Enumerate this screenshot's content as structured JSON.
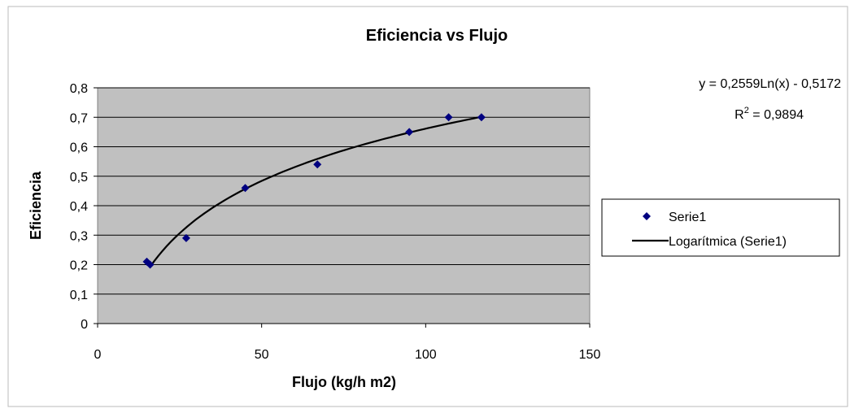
{
  "chart_data": {
    "type": "scatter",
    "title": "Eficiencia vs Flujo",
    "xlabel": "Flujo (kg/h m2)",
    "ylabel": "Eficiencia",
    "xlim": [
      0,
      150
    ],
    "ylim": [
      0,
      0.8
    ],
    "xticks": [
      0,
      50,
      100,
      150
    ],
    "xtick_labels": [
      "0",
      "50",
      "100",
      "150"
    ],
    "yticks": [
      0,
      0.1,
      0.2,
      0.3,
      0.4,
      0.5,
      0.6,
      0.7,
      0.8
    ],
    "ytick_labels": [
      "0",
      "0,1",
      "0,2",
      "0,3",
      "0,4",
      "0,5",
      "0,6",
      "0,7",
      "0,8"
    ],
    "grid": "horizontal",
    "plot_background": "#c0c0c0",
    "series": [
      {
        "name": "Serie1",
        "kind": "scatter",
        "color": "#000080",
        "marker": "diamond",
        "x": [
          15,
          16,
          27,
          45,
          67,
          95,
          107,
          117
        ],
        "y": [
          0.21,
          0.2,
          0.29,
          0.46,
          0.54,
          0.65,
          0.7,
          0.7
        ]
      }
    ],
    "trendline": {
      "name": "Logarítmica (Serie1)",
      "kind": "logarithmic",
      "a": 0.2559,
      "b": -0.5172,
      "x_range": [
        16,
        117
      ],
      "color": "#000000"
    },
    "annotations": {
      "equation": "y = 0,2559Ln(x) - 0,5172",
      "r2_prefix": "R",
      "r2_exp": "2",
      "r2_value": " = 0,9894"
    },
    "legend": {
      "position": "right",
      "items": [
        {
          "label": "Serie1",
          "symbol": "diamond"
        },
        {
          "label": "Logarítmica (Serie1)",
          "symbol": "line"
        }
      ]
    }
  }
}
